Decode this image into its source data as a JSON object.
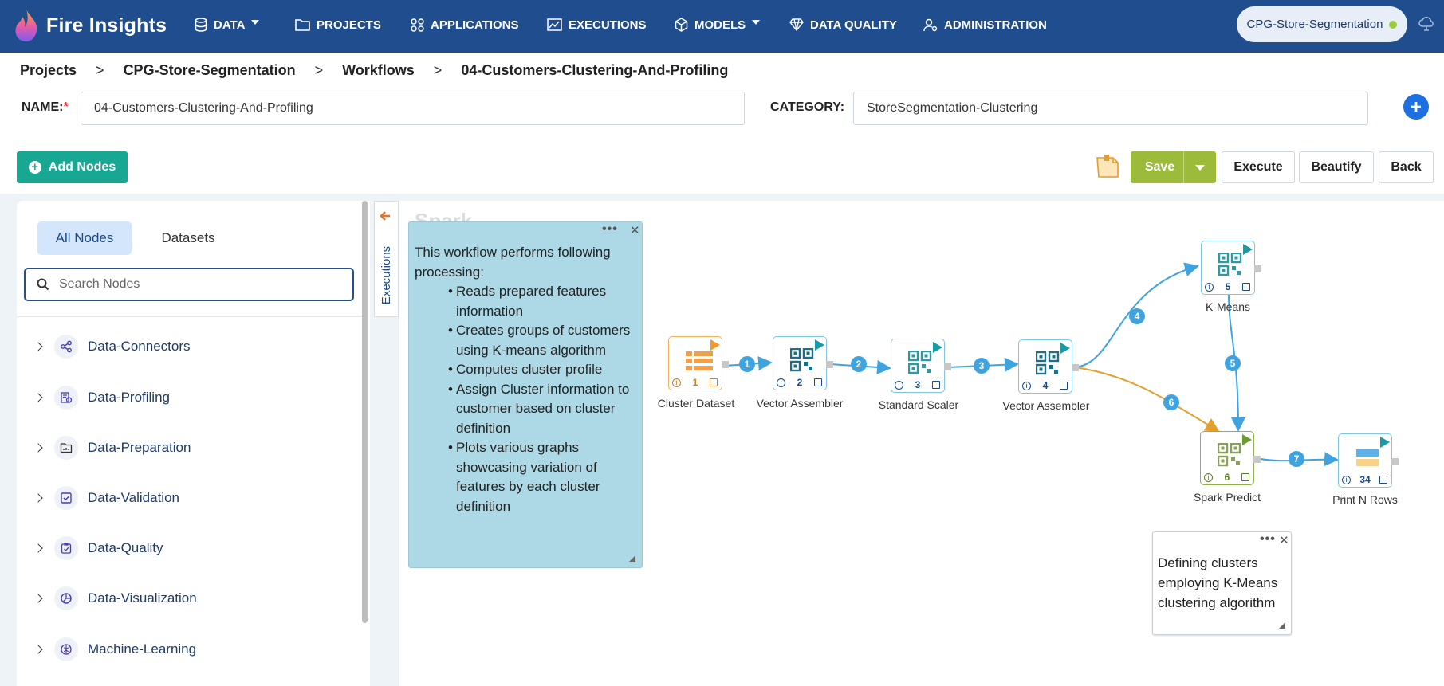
{
  "app": {
    "name": "Fire Insights"
  },
  "nav": {
    "items": [
      {
        "label": "DATA"
      },
      {
        "label": "PROJECTS"
      },
      {
        "label": "APPLICATIONS"
      },
      {
        "label": "EXECUTIONS"
      },
      {
        "label": "MODELS"
      },
      {
        "label": "DATA QUALITY"
      },
      {
        "label": "ADMINISTRATION"
      }
    ],
    "project_pill": "CPG-Store-Segmentation"
  },
  "breadcrumb": [
    "Projects",
    "CPG-Store-Segmentation",
    "Workflows",
    "04-Customers-Clustering-And-Profiling"
  ],
  "breadcrumb_sep": ">",
  "form": {
    "name_label": "NAME:",
    "required_mark": "*",
    "name_value": "04-Customers-Clustering-And-Profiling",
    "category_label": "CATEGORY:",
    "category_value": "StoreSegmentation-Clustering"
  },
  "toolbar": {
    "add_nodes": "Add Nodes",
    "save": "Save",
    "execute": "Execute",
    "beautify": "Beautify",
    "back": "Back"
  },
  "sidebar": {
    "tabs": [
      "All Nodes",
      "Datasets"
    ],
    "search_placeholder": "Search Nodes",
    "categories": [
      {
        "label": "Data-Connectors"
      },
      {
        "label": "Data-Profiling"
      },
      {
        "label": "Data-Preparation"
      },
      {
        "label": "Data-Validation"
      },
      {
        "label": "Data-Quality"
      },
      {
        "label": "Data-Visualization"
      },
      {
        "label": "Machine-Learning"
      }
    ]
  },
  "executions_label": "Executions",
  "canvas": {
    "engine_label": "Spark",
    "note_main": {
      "intro": "This workflow performs following processing:",
      "bullets": [
        "Reads prepared features information",
        "Creates groups of customers using K-means algorithm",
        "Computes cluster profile",
        "Assign Cluster information to customer based on cluster definition",
        "Plots various graphs showcasing variation of features by each cluster definition"
      ]
    },
    "note_small": "Defining clusters employing K-Means clustering algorithm",
    "nodes": [
      {
        "id": "1",
        "label": "Cluster Dataset"
      },
      {
        "id": "2",
        "label": "Vector Assembler"
      },
      {
        "id": "3",
        "label": "Standard Scaler"
      },
      {
        "id": "4",
        "label": "Vector Assembler"
      },
      {
        "id": "5",
        "label": "K-Means"
      },
      {
        "id": "6",
        "label": "Spark Predict"
      },
      {
        "id": "34",
        "label": "Print N Rows"
      }
    ],
    "edges": [
      "1",
      "2",
      "3",
      "4",
      "5",
      "6",
      "7"
    ]
  },
  "colors": {
    "nav_bg": "#1f4d8e",
    "accent_teal": "#17a793",
    "save_green": "#9cbb3b",
    "edge_blue": "#3fa3e0",
    "edge_orange": "#e3a02a",
    "note_blue": "#add8e6"
  }
}
